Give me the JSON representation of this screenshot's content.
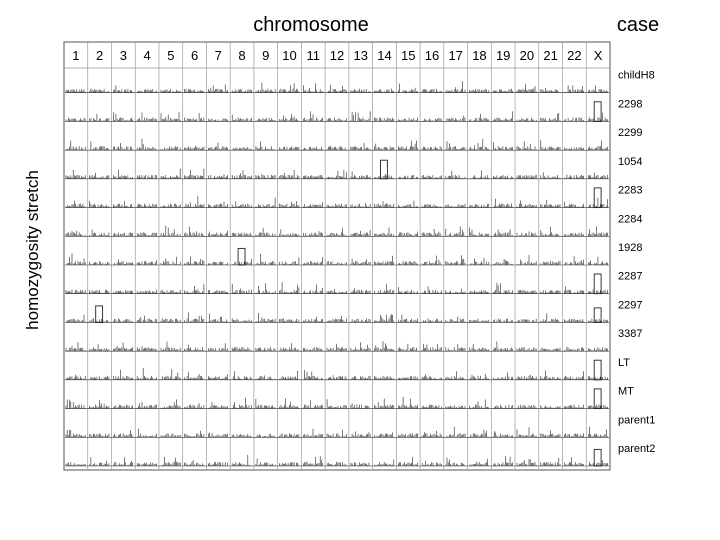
{
  "chart_data": {
    "type": "bar",
    "title_left": "chromosome",
    "title_right": "case",
    "ylabel": "homozygosity stretch",
    "chromosomes": [
      "1",
      "2",
      "3",
      "4",
      "5",
      "6",
      "7",
      "8",
      "9",
      "10",
      "11",
      "12",
      "13",
      "14",
      "15",
      "16",
      "17",
      "18",
      "19",
      "20",
      "21",
      "22",
      "X"
    ],
    "cases": [
      "childH8",
      "2298",
      "2299",
      "1054",
      "2283",
      "2284",
      "1928",
      "2287",
      "2297",
      "3387",
      "LT",
      "MT",
      "parent1",
      "parent2"
    ],
    "grid": true,
    "legend": "none",
    "notable_stretches": [
      {
        "case": "2298",
        "chromosome": "X",
        "relative_height": 0.95
      },
      {
        "case": "1054",
        "chromosome": "14",
        "relative_height": 0.9
      },
      {
        "case": "2283",
        "chromosome": "X",
        "relative_height": 0.95
      },
      {
        "case": "1928",
        "chromosome": "8",
        "relative_height": 0.8
      },
      {
        "case": "2287",
        "chromosome": "X",
        "relative_height": 0.95
      },
      {
        "case": "2297",
        "chromosome": "2",
        "relative_height": 0.8
      },
      {
        "case": "2297",
        "chromosome": "X",
        "relative_height": 0.7
      },
      {
        "case": "LT",
        "chromosome": "X",
        "relative_height": 0.95
      },
      {
        "case": "MT",
        "chromosome": "X",
        "relative_height": 0.95
      },
      {
        "case": "parent2",
        "chromosome": "X",
        "relative_height": 0.8
      }
    ]
  }
}
